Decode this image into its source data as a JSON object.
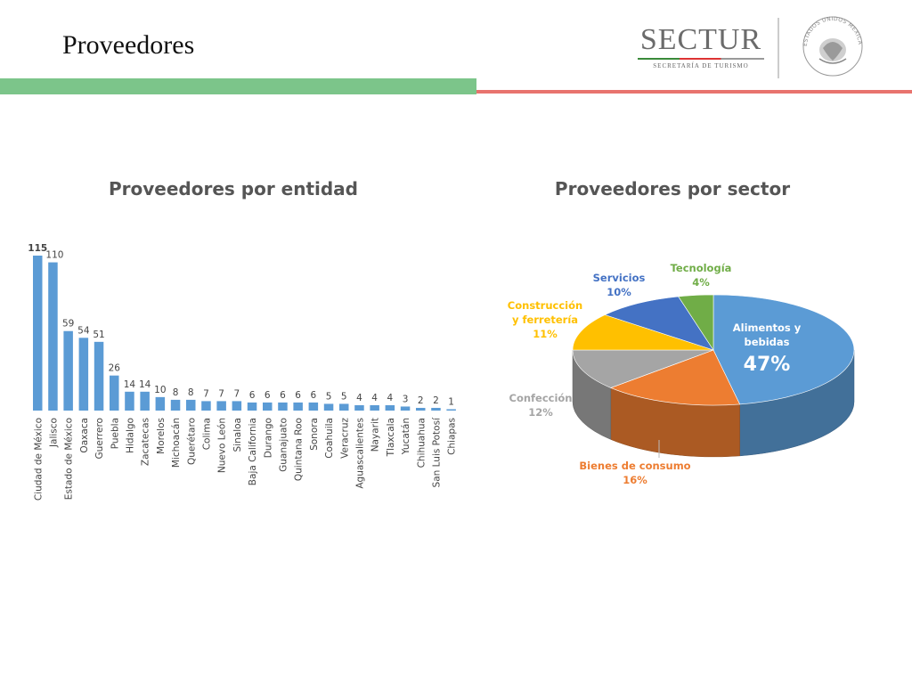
{
  "slide": {
    "title": "Proveedores",
    "logo_text": "SECTUR",
    "logo_subtitle": "SECRETARÍA DE TURISMO",
    "seal_text": "ESTADOS UNIDOS MEXICANOS"
  },
  "colors": {
    "green_band": "#7cc58a",
    "red_line": "#e8736e",
    "bar": "#5b9bd5"
  },
  "chart_data": [
    {
      "type": "bar",
      "title": "Proveedores por entidad",
      "categories": [
        "Ciudad de México",
        "Jalisco",
        "Estado de México",
        "Oaxaca",
        "Guerrero",
        "Puebla",
        "Hidalgo",
        "Zacatecas",
        "Morelos",
        "Michoacán",
        "Querétaro",
        "Colima",
        "Nuevo León",
        "Sinaloa",
        "Baja California",
        "Durango",
        "Guanajuato",
        "Quintana Roo",
        "Sonora",
        "Coahuila",
        "Veracruz",
        "Aguascalientes",
        "Nayarit",
        "Tlaxcala",
        "Yucatán",
        "Chihuahua",
        "San Luis Potosí",
        "Chiapas"
      ],
      "values": [
        115,
        110,
        59,
        54,
        51,
        26,
        14,
        14,
        10,
        8,
        8,
        7,
        7,
        7,
        6,
        6,
        6,
        6,
        6,
        5,
        5,
        4,
        4,
        4,
        3,
        2,
        2,
        1
      ],
      "ylim": [
        0,
        115
      ],
      "grid": false,
      "data_labels": true
    },
    {
      "type": "pie",
      "title": "Proveedores por sector",
      "slices": [
        {
          "label": "Alimentos y bebidas",
          "value": 47,
          "display": "47%",
          "color": "#5b9bd5"
        },
        {
          "label": "Bienes de consumo",
          "value": 16,
          "display": "16%",
          "color": "#ed7d31"
        },
        {
          "label": "Confección",
          "value": 12,
          "display": "12%",
          "color": "#a5a5a5"
        },
        {
          "label": "Construcción y ferretería",
          "value": 11,
          "display": "11%",
          "color": "#ffc000"
        },
        {
          "label": "Servicios",
          "value": 10,
          "display": "10%",
          "color": "#4472c4"
        },
        {
          "label": "Tecnología",
          "value": 4,
          "display": "4%",
          "color": "#70ad47"
        }
      ],
      "style": "3d"
    }
  ]
}
